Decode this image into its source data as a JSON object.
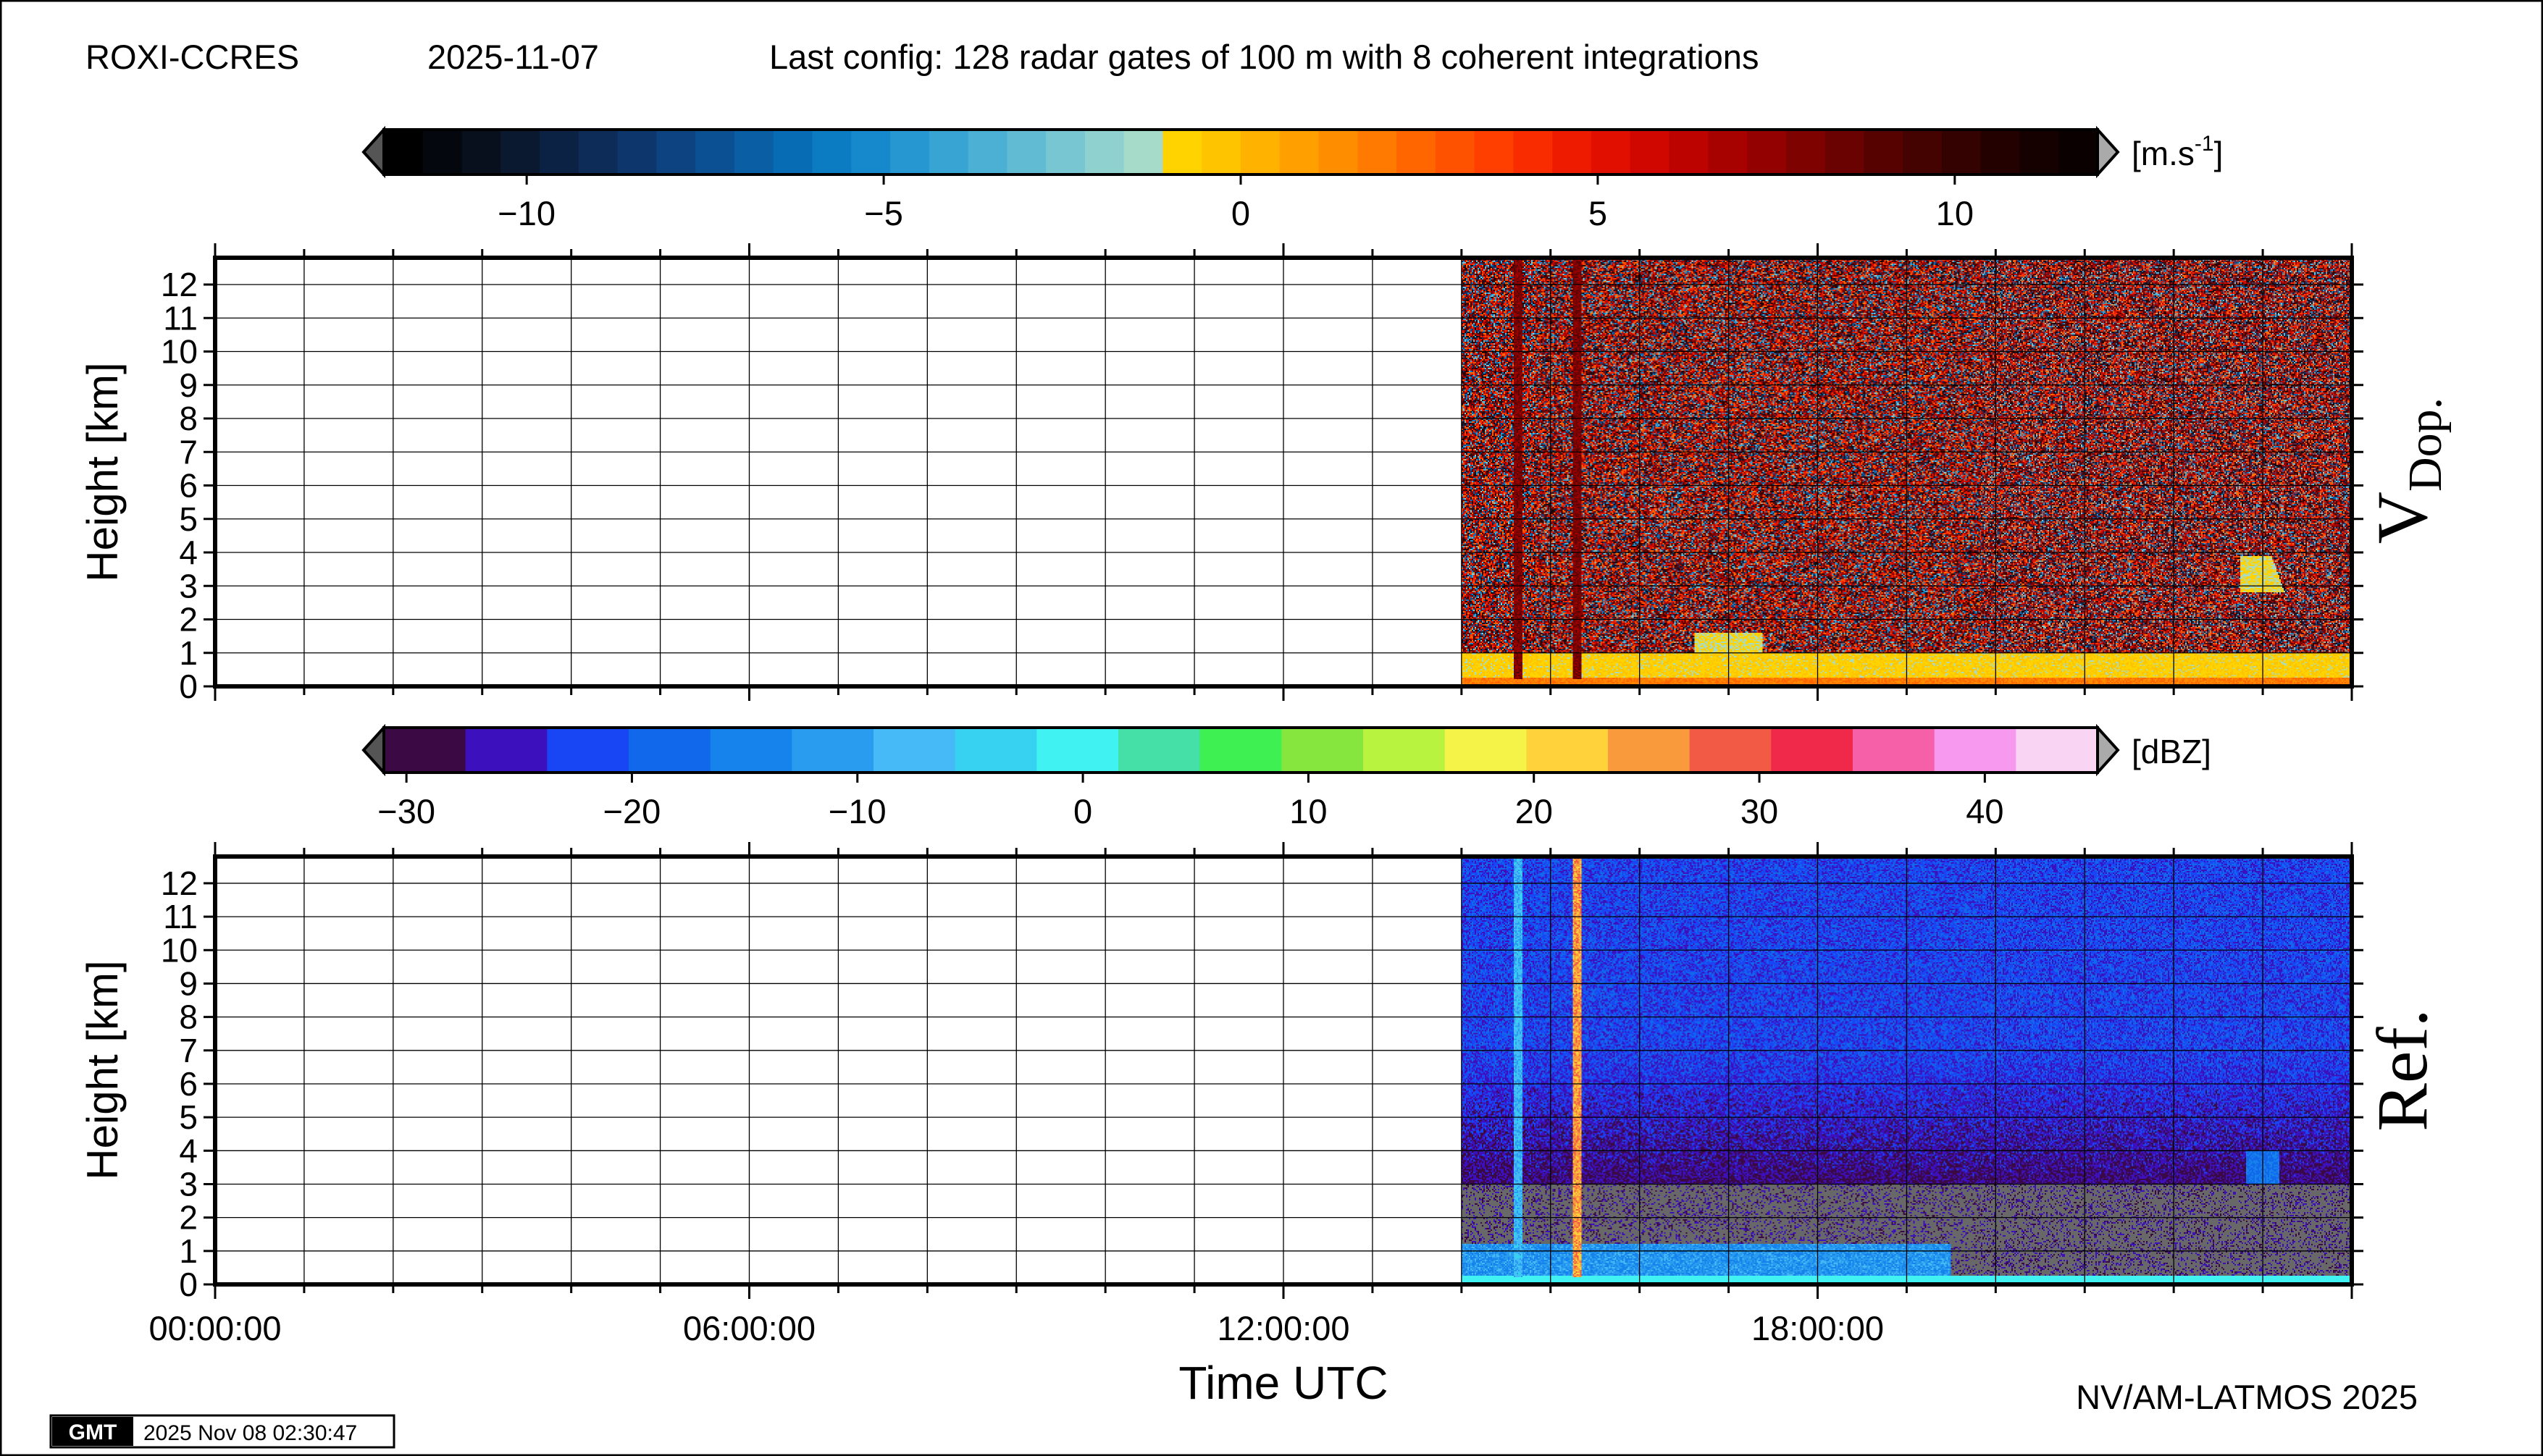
{
  "header": {
    "station": "ROXI-CCRES",
    "date": "2025-11-07",
    "config": "Last config: 128 radar gates of 100 m with 8 coherent integrations"
  },
  "footer": {
    "credit": "NV/AM-LATMOS 2025",
    "gmt_logo": "GMT",
    "timestamp": "2025 Nov 08 02:30:47"
  },
  "colorbars": [
    {
      "id": "velocity",
      "unit": "[m.s-1]",
      "unit_base": "[m.s",
      "unit_sup": "-1",
      "unit_close": "]",
      "min": -12,
      "max": 12,
      "ticks": [
        -10,
        -5,
        0,
        5,
        10
      ],
      "tick_labels": [
        "−10",
        "−5",
        "0",
        "5",
        "10"
      ],
      "colors": [
        "#000000",
        "#04070e",
        "#08101e",
        "#0b1930",
        "#0c2244",
        "#0d2c58",
        "#0d376c",
        "#0c4380",
        "#0b5092",
        "#095ea4",
        "#086cb4",
        "#0b7bc2",
        "#1689cc",
        "#2697d1",
        "#38a4d3",
        "#4bb0d4",
        "#60bbd3",
        "#77c6d2",
        "#8fd1cf",
        "#a7dbc9",
        "#ffd300",
        "#ffc400",
        "#ffb200",
        "#ffa000",
        "#ff8d00",
        "#ff7a00",
        "#ff6600",
        "#ff5200",
        "#ff3f00",
        "#f92c00",
        "#ef1b00",
        "#e10f00",
        "#d00700",
        "#bd0300",
        "#a80200",
        "#930200",
        "#7e0200",
        "#690200",
        "#560200",
        "#440201",
        "#330201",
        "#240101",
        "#160101",
        "#0a0000"
      ]
    },
    {
      "id": "reflectivity",
      "unit": "[dBZ]",
      "min": -31,
      "max": 45,
      "ticks": [
        -30,
        -20,
        -10,
        0,
        10,
        20,
        30,
        40
      ],
      "tick_labels": [
        "−30",
        "−20",
        "−10",
        "0",
        "10",
        "20",
        "30",
        "40"
      ],
      "colors": [
        "#3b0a45",
        "#3d10bd",
        "#1946f5",
        "#1268eb",
        "#1683ec",
        "#2a9cf0",
        "#46baf6",
        "#37d2f2",
        "#40f2f2",
        "#44e0a7",
        "#3ef051",
        "#86e63d",
        "#b7f33f",
        "#f5f348",
        "#ffd23c",
        "#f99b3c",
        "#f25a45",
        "#f0284a",
        "#f560a8",
        "#f799ee",
        "#f9d4f3"
      ]
    }
  ],
  "chart_data": [
    {
      "type": "heatmap",
      "title": "V Dop.",
      "title_main": "V",
      "title_sub": "Dop.",
      "ylabel": "Height [km]",
      "xlabel": "",
      "xlim": [
        "00:00:00",
        "24:00:00"
      ],
      "ylim": [
        0,
        12.8
      ],
      "yticks": [
        0,
        1,
        2,
        3,
        4,
        5,
        6,
        7,
        8,
        9,
        10,
        11,
        12
      ],
      "ytick_labels": [
        "0",
        "1",
        "2",
        "3",
        "4",
        "5",
        "6",
        "7",
        "8",
        "9",
        "10",
        "11",
        "12"
      ],
      "data_start": "14:00:00",
      "data_end": "24:00:00",
      "features": [
        {
          "kind": "near-surface layer",
          "height_km": [
            0,
            1
          ],
          "velocity_ms": 0.5
        },
        {
          "kind": "cloud",
          "time": "17:00:00",
          "height_km": [
            0.3,
            1.6
          ],
          "velocity_ms": -1
        },
        {
          "kind": "echo",
          "time": "23:00:00",
          "height_km": [
            2.8,
            3.9
          ],
          "velocity_ms": -1
        },
        {
          "kind": "spike",
          "time": "14:38:00",
          "velocity_ms": 8
        },
        {
          "kind": "spike",
          "time": "15:18:00",
          "velocity_ms": 8
        }
      ]
    },
    {
      "type": "heatmap",
      "title": "Ref.",
      "ylabel": "Height [km]",
      "xlabel": "Time UTC",
      "xlim": [
        "00:00:00",
        "24:00:00"
      ],
      "ylim": [
        0,
        12.8
      ],
      "yticks": [
        0,
        1,
        2,
        3,
        4,
        5,
        6,
        7,
        8,
        9,
        10,
        11,
        12
      ],
      "ytick_labels": [
        "0",
        "1",
        "2",
        "3",
        "4",
        "5",
        "6",
        "7",
        "8",
        "9",
        "10",
        "11",
        "12"
      ],
      "xticks": [
        "00:00:00",
        "06:00:00",
        "12:00:00",
        "18:00:00"
      ],
      "data_start": "14:00:00",
      "data_end": "24:00:00",
      "features": [
        {
          "kind": "upper noise",
          "height_km": [
            4,
            12.8
          ],
          "reflectivity_dbz": -20
        },
        {
          "kind": "lower noise",
          "height_km": [
            0,
            3
          ],
          "reflectivity_dbz": -28
        },
        {
          "kind": "boundary layer",
          "height_km": [
            0,
            1.2
          ],
          "reflectivity_dbz": -12
        },
        {
          "kind": "echo",
          "time": "23:00:00",
          "height_km": [
            3,
            4
          ],
          "reflectivity_dbz": -20
        },
        {
          "kind": "spike",
          "time": "14:38:00",
          "reflectivity_dbz": -8
        },
        {
          "kind": "spike",
          "time": "15:18:00",
          "reflectivity_dbz": 25
        }
      ]
    }
  ]
}
